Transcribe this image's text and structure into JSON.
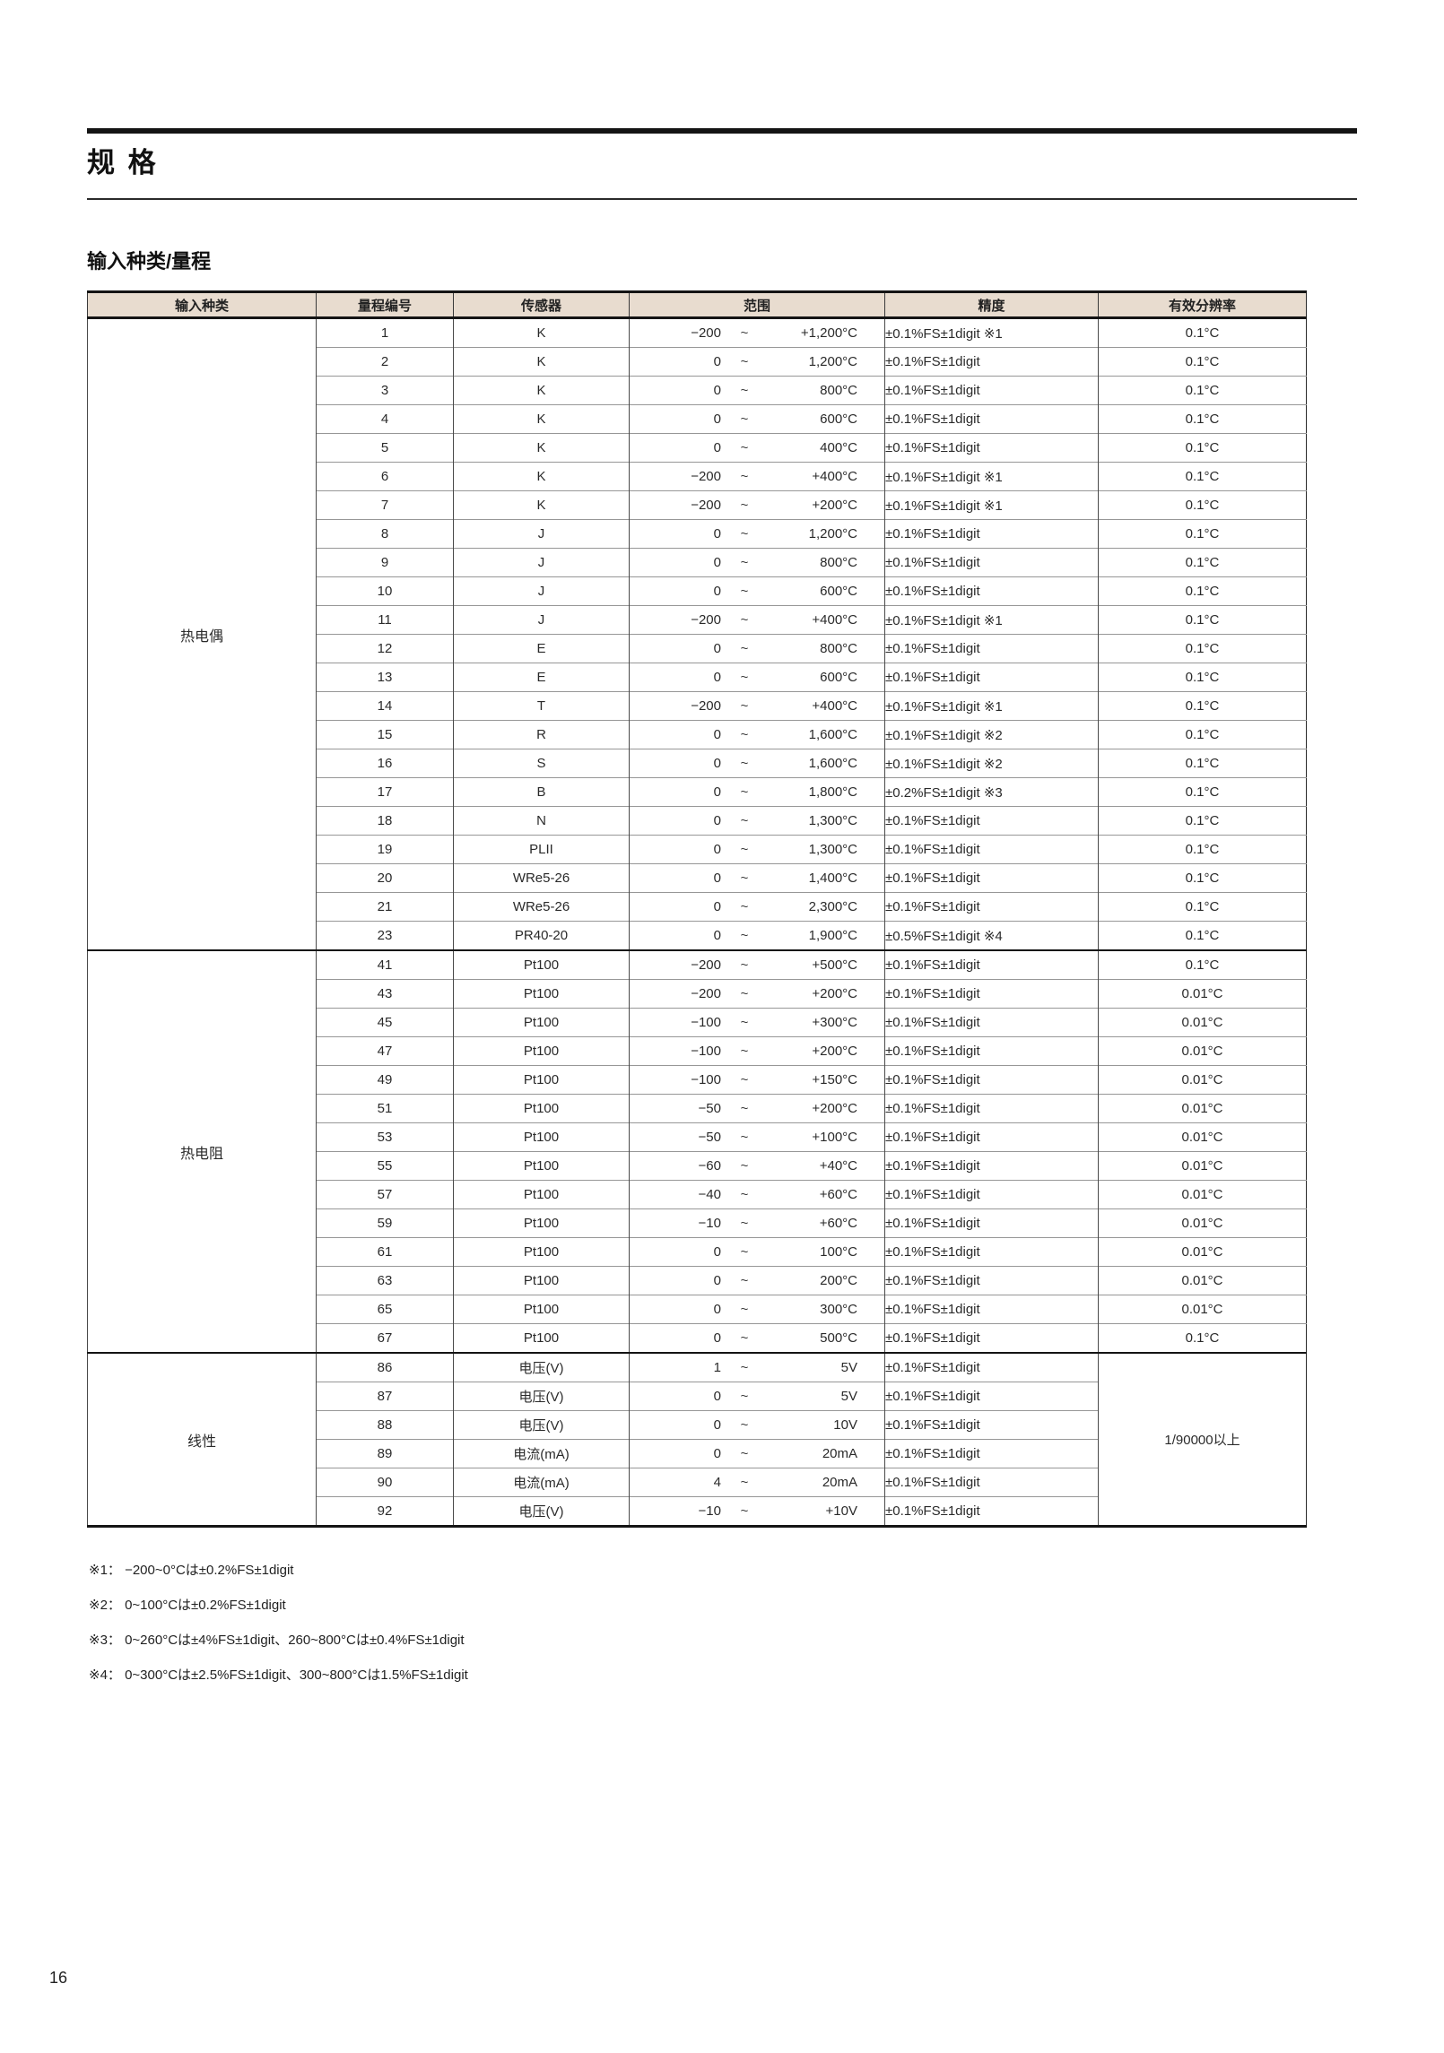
{
  "page": {
    "title": "规 格",
    "section_title": "输入种类/量程",
    "page_number": "16"
  },
  "table": {
    "headers": [
      "输入种类",
      "量程编号",
      "传感器",
      "范围",
      "精度",
      "有效分辨率"
    ],
    "range_separator": "~",
    "groups": [
      {
        "name": "热电偶",
        "rows": [
          {
            "no": "1",
            "sensor": "K",
            "range_low": "−200",
            "range_high": "+1,200°C",
            "accuracy": "±0.1%FS±1digit ※1",
            "resolution": "0.1°C"
          },
          {
            "no": "2",
            "sensor": "K",
            "range_low": "0",
            "range_high": "1,200°C",
            "accuracy": "±0.1%FS±1digit",
            "resolution": "0.1°C"
          },
          {
            "no": "3",
            "sensor": "K",
            "range_low": "0",
            "range_high": "800°C",
            "accuracy": "±0.1%FS±1digit",
            "resolution": "0.1°C"
          },
          {
            "no": "4",
            "sensor": "K",
            "range_low": "0",
            "range_high": "600°C",
            "accuracy": "±0.1%FS±1digit",
            "resolution": "0.1°C"
          },
          {
            "no": "5",
            "sensor": "K",
            "range_low": "0",
            "range_high": "400°C",
            "accuracy": "±0.1%FS±1digit",
            "resolution": "0.1°C"
          },
          {
            "no": "6",
            "sensor": "K",
            "range_low": "−200",
            "range_high": "+400°C",
            "accuracy": "±0.1%FS±1digit ※1",
            "resolution": "0.1°C"
          },
          {
            "no": "7",
            "sensor": "K",
            "range_low": "−200",
            "range_high": "+200°C",
            "accuracy": "±0.1%FS±1digit ※1",
            "resolution": "0.1°C"
          },
          {
            "no": "8",
            "sensor": "J",
            "range_low": "0",
            "range_high": "1,200°C",
            "accuracy": "±0.1%FS±1digit",
            "resolution": "0.1°C"
          },
          {
            "no": "9",
            "sensor": "J",
            "range_low": "0",
            "range_high": "800°C",
            "accuracy": "±0.1%FS±1digit",
            "resolution": "0.1°C"
          },
          {
            "no": "10",
            "sensor": "J",
            "range_low": "0",
            "range_high": "600°C",
            "accuracy": "±0.1%FS±1digit",
            "resolution": "0.1°C"
          },
          {
            "no": "11",
            "sensor": "J",
            "range_low": "−200",
            "range_high": "+400°C",
            "accuracy": "±0.1%FS±1digit ※1",
            "resolution": "0.1°C"
          },
          {
            "no": "12",
            "sensor": "E",
            "range_low": "0",
            "range_high": "800°C",
            "accuracy": "±0.1%FS±1digit",
            "resolution": "0.1°C"
          },
          {
            "no": "13",
            "sensor": "E",
            "range_low": "0",
            "range_high": "600°C",
            "accuracy": "±0.1%FS±1digit",
            "resolution": "0.1°C"
          },
          {
            "no": "14",
            "sensor": "T",
            "range_low": "−200",
            "range_high": "+400°C",
            "accuracy": "±0.1%FS±1digit ※1",
            "resolution": "0.1°C"
          },
          {
            "no": "15",
            "sensor": "R",
            "range_low": "0",
            "range_high": "1,600°C",
            "accuracy": "±0.1%FS±1digit ※2",
            "resolution": "0.1°C"
          },
          {
            "no": "16",
            "sensor": "S",
            "range_low": "0",
            "range_high": "1,600°C",
            "accuracy": "±0.1%FS±1digit ※2",
            "resolution": "0.1°C"
          },
          {
            "no": "17",
            "sensor": "B",
            "range_low": "0",
            "range_high": "1,800°C",
            "accuracy": "±0.2%FS±1digit ※3",
            "resolution": "0.1°C"
          },
          {
            "no": "18",
            "sensor": "N",
            "range_low": "0",
            "range_high": "1,300°C",
            "accuracy": "±0.1%FS±1digit",
            "resolution": "0.1°C"
          },
          {
            "no": "19",
            "sensor": "PLII",
            "range_low": "0",
            "range_high": "1,300°C",
            "accuracy": "±0.1%FS±1digit",
            "resolution": "0.1°C"
          },
          {
            "no": "20",
            "sensor": "WRe5-26",
            "range_low": "0",
            "range_high": "1,400°C",
            "accuracy": "±0.1%FS±1digit",
            "resolution": "0.1°C"
          },
          {
            "no": "21",
            "sensor": "WRe5-26",
            "range_low": "0",
            "range_high": "2,300°C",
            "accuracy": "±0.1%FS±1digit",
            "resolution": "0.1°C"
          },
          {
            "no": "23",
            "sensor": "PR40-20",
            "range_low": "0",
            "range_high": "1,900°C",
            "accuracy": "±0.5%FS±1digit ※4",
            "resolution": "0.1°C"
          }
        ]
      },
      {
        "name": "热电阻",
        "rows": [
          {
            "no": "41",
            "sensor": "Pt100",
            "range_low": "−200",
            "range_high": "+500°C",
            "accuracy": "±0.1%FS±1digit",
            "resolution": "0.1°C"
          },
          {
            "no": "43",
            "sensor": "Pt100",
            "range_low": "−200",
            "range_high": "+200°C",
            "accuracy": "±0.1%FS±1digit",
            "resolution": "0.01°C"
          },
          {
            "no": "45",
            "sensor": "Pt100",
            "range_low": "−100",
            "range_high": "+300°C",
            "accuracy": "±0.1%FS±1digit",
            "resolution": "0.01°C"
          },
          {
            "no": "47",
            "sensor": "Pt100",
            "range_low": "−100",
            "range_high": "+200°C",
            "accuracy": "±0.1%FS±1digit",
            "resolution": "0.01°C"
          },
          {
            "no": "49",
            "sensor": "Pt100",
            "range_low": "−100",
            "range_high": "+150°C",
            "accuracy": "±0.1%FS±1digit",
            "resolution": "0.01°C"
          },
          {
            "no": "51",
            "sensor": "Pt100",
            "range_low": "−50",
            "range_high": "+200°C",
            "accuracy": "±0.1%FS±1digit",
            "resolution": "0.01°C"
          },
          {
            "no": "53",
            "sensor": "Pt100",
            "range_low": "−50",
            "range_high": "+100°C",
            "accuracy": "±0.1%FS±1digit",
            "resolution": "0.01°C"
          },
          {
            "no": "55",
            "sensor": "Pt100",
            "range_low": "−60",
            "range_high": "+40°C",
            "accuracy": "±0.1%FS±1digit",
            "resolution": "0.01°C"
          },
          {
            "no": "57",
            "sensor": "Pt100",
            "range_low": "−40",
            "range_high": "+60°C",
            "accuracy": "±0.1%FS±1digit",
            "resolution": "0.01°C"
          },
          {
            "no": "59",
            "sensor": "Pt100",
            "range_low": "−10",
            "range_high": "+60°C",
            "accuracy": "±0.1%FS±1digit",
            "resolution": "0.01°C"
          },
          {
            "no": "61",
            "sensor": "Pt100",
            "range_low": "0",
            "range_high": "100°C",
            "accuracy": "±0.1%FS±1digit",
            "resolution": "0.01°C"
          },
          {
            "no": "63",
            "sensor": "Pt100",
            "range_low": "0",
            "range_high": "200°C",
            "accuracy": "±0.1%FS±1digit",
            "resolution": "0.01°C"
          },
          {
            "no": "65",
            "sensor": "Pt100",
            "range_low": "0",
            "range_high": "300°C",
            "accuracy": "±0.1%FS±1digit",
            "resolution": "0.01°C"
          },
          {
            "no": "67",
            "sensor": "Pt100",
            "range_low": "0",
            "range_high": "500°C",
            "accuracy": "±0.1%FS±1digit",
            "resolution": "0.1°C"
          }
        ]
      },
      {
        "name": "线性",
        "merged_resolution": "1/90000以上",
        "rows": [
          {
            "no": "86",
            "sensor": "电压(V)",
            "range_low": "1",
            "range_high": "5V",
            "accuracy": "±0.1%FS±1digit"
          },
          {
            "no": "87",
            "sensor": "电压(V)",
            "range_low": "0",
            "range_high": "5V",
            "accuracy": "±0.1%FS±1digit"
          },
          {
            "no": "88",
            "sensor": "电压(V)",
            "range_low": "0",
            "range_high": "10V",
            "accuracy": "±0.1%FS±1digit"
          },
          {
            "no": "89",
            "sensor": "电流(mA)",
            "range_low": "0",
            "range_high": "20mA",
            "accuracy": "±0.1%FS±1digit"
          },
          {
            "no": "90",
            "sensor": "电流(mA)",
            "range_low": "4",
            "range_high": "20mA",
            "accuracy": "±0.1%FS±1digit"
          },
          {
            "no": "92",
            "sensor": "电压(V)",
            "range_low": "−10",
            "range_high": "+10V",
            "accuracy": "±0.1%FS±1digit"
          }
        ]
      }
    ]
  },
  "footnotes": [
    "※1： −200~0°Cは±0.2%FS±1digit",
    "※2： 0~100°Cは±0.2%FS±1digit",
    "※3： 0~260°Cは±4%FS±1digit、260~800°Cは±0.4%FS±1digit",
    "※4： 0~300°Cは±2.5%FS±1digit、300~800°Cは1.5%FS±1digit"
  ]
}
